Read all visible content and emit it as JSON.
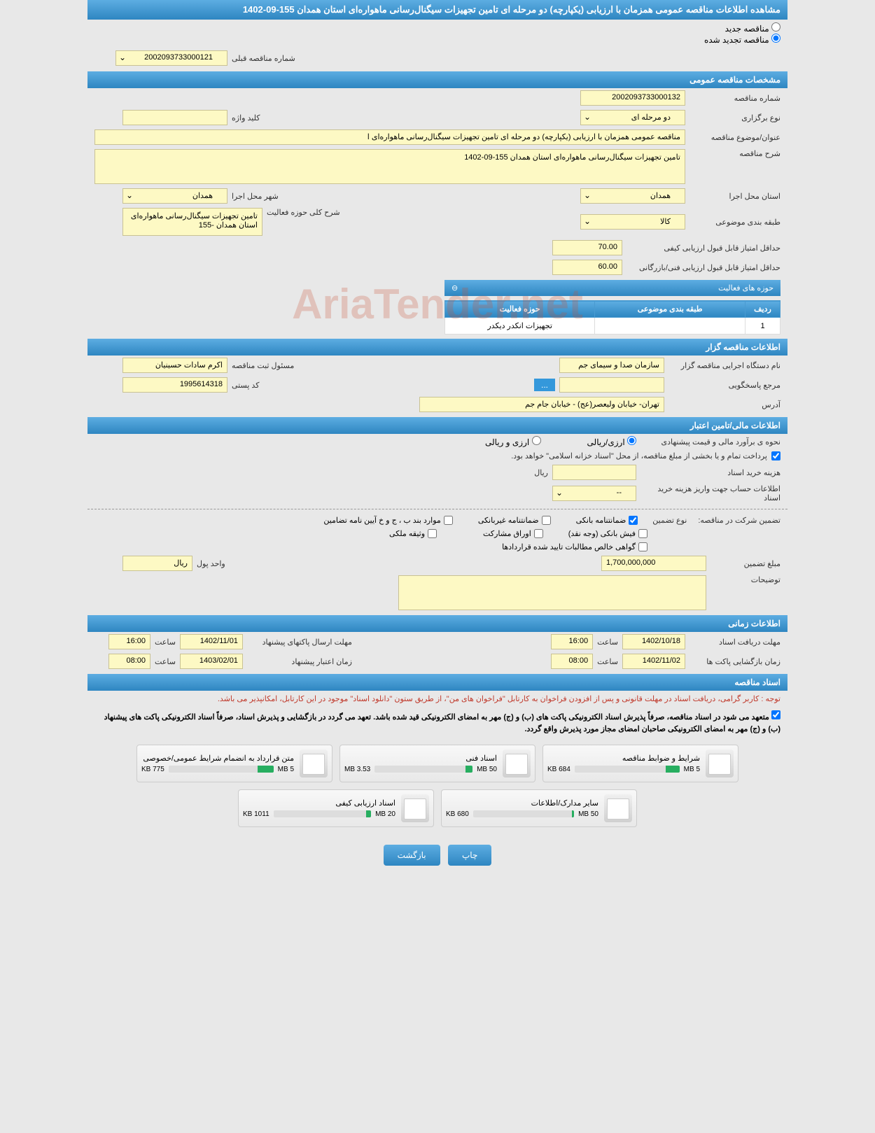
{
  "page_title": "مشاهده اطلاعات مناقصه عمومی همزمان با ارزیابی (یکپارچه) دو مرحله ای تامین تجهیزات سیگنال‌رسانی ماهواره‌ای استان همدان 155-09-1402",
  "radio": {
    "new_tender": "مناقصه جدید",
    "renewed_tender": "مناقصه تجدید شده"
  },
  "prev_number": {
    "label": "شماره مناقصه قبلی",
    "value": "2002093733000121"
  },
  "sections": {
    "general": "مشخصات مناقصه عمومی",
    "holder": "اطلاعات مناقصه گزار",
    "financial": "اطلاعات مالی/تامین اعتبار",
    "time": "اطلاعات زمانی",
    "docs": "اسناد مناقصه"
  },
  "general": {
    "tender_number_label": "شماره مناقصه",
    "tender_number": "2002093733000132",
    "type_label": "نوع برگزاری",
    "type_value": "دو مرحله ای",
    "keyword_label": "کلید واژه",
    "keyword_value": "",
    "title_label": "عنوان/موضوع مناقصه",
    "title_value": "مناقصه عمومی همزمان با ارزیابی (یکپارچه) دو مرحله ای تامین تجهیزات سیگنال‌رسانی ماهواره‌ای ا",
    "description_label": "شرح مناقصه",
    "description_value": "تامین تجهیزات سیگنال‌رسانی ماهواره‌ای استان همدان 155-09-1402",
    "exec_province_label": "استان محل اجرا",
    "exec_province": "همدان",
    "exec_city_label": "شهر محل اجرا",
    "exec_city": "همدان",
    "topic_class_label": "طبقه بندی موضوعی",
    "topic_class": "کالا",
    "activity_desc_label": "شرح کلی حوزه فعالیت",
    "activity_desc": "تامین تجهیزات سیگنال‌رسانی ماهواره‌ای استان همدان -155",
    "min_quality_score_label": "حداقل امتیاز قابل قبول ارزیابی کیفی",
    "min_quality_score": "70.00",
    "min_tech_score_label": "حداقل امتیاز قابل قبول ارزیابی فنی/بازرگانی",
    "min_tech_score": "60.00"
  },
  "activity_table": {
    "header": "حوزه های فعالیت",
    "col_row": "ردیف",
    "col_topic": "طبقه بندی موضوعی",
    "col_activity": "حوزه فعالیت",
    "row1_num": "1",
    "row1_topic": "",
    "row1_activity": "تجهیزات انکدر دیکدر"
  },
  "holder": {
    "exec_org_label": "نام دستگاه اجرایی مناقصه گزار",
    "exec_org": "سازمان صدا و سیمای جم",
    "reg_officer_label": "مسئول ثبت مناقصه",
    "reg_officer": "اکرم سادات حسینیان",
    "responder_label": "مرجع پاسخگویی",
    "responder": "",
    "postal_code_label": "کد پستی",
    "postal_code": "1995614318",
    "address_label": "آدرس",
    "address": "تهران- خیابان ولیعصر(عج) - خیابان جام جم"
  },
  "financial": {
    "estimate_method_label": "نحوه ی برآورد مالی و قیمت پیشنهادی",
    "rial_option": "ارزی/ریالی",
    "currency_option": "ارزی و ریالی",
    "treasury_note": "پرداخت تمام و یا بخشی از مبلغ مناقصه، از محل \"اسناد خزانه اسلامی\" خواهد بود.",
    "doc_cost_label": "هزینه خرید اسناد",
    "doc_cost": "",
    "currency_unit": "ریال",
    "account_info_label": "اطلاعات حساب جهت واریز هزینه خرید اسناد",
    "account_info": "--",
    "guarantee_label": "تضمین شرکت در مناقصه:",
    "guarantee_type_label": "نوع تضمین",
    "bank_guarantee": "ضمانتنامه بانکی",
    "nonbank_guarantee": "ضمانتنامه غیربانکی",
    "regulation_items": "موارد بند ب ، ج و خ آیین نامه تضامین",
    "bank_receipt": "فیش بانکی (وجه نقد)",
    "participation_bonds": "اوراق مشارکت",
    "property_deed": "وثیقه ملکی",
    "net_receivables": "گواهی خالص مطالبات تایید شده قراردادها",
    "guarantee_amount_label": "مبلغ تضمین",
    "guarantee_amount": "1,700,000,000",
    "currency_unit_label": "واحد پول",
    "currency_unit_value": "ریال",
    "notes_label": "توضیحات",
    "notes": ""
  },
  "time": {
    "doc_deadline_label": "مهلت دریافت اسناد",
    "doc_deadline_date": "1402/10/18",
    "doc_deadline_hour_label": "ساعت",
    "doc_deadline_hour": "16:00",
    "envelope_send_label": "مهلت ارسال پاکتهای پیشنهاد",
    "envelope_send_date": "1402/11/01",
    "envelope_send_hour_label": "ساعت",
    "envelope_send_hour": "16:00",
    "envelope_open_label": "زمان بازگشایی پاکت ها",
    "envelope_open_date": "1402/11/02",
    "envelope_open_hour_label": "ساعت",
    "envelope_open_hour": "08:00",
    "validity_label": "زمان اعتبار پیشنهاد",
    "validity_date": "1403/02/01",
    "validity_hour_label": "ساعت",
    "validity_hour": "08:00"
  },
  "docs": {
    "note1": "توجه : کاربر گرامی، دریافت اسناد در مهلت قانونی و پس از افزودن فراخوان به کارتابل \"فراخوان های من\"، از طریق ستون \"دانلود اسناد\" موجود در این کارتابل، امکانپذیر می باشد.",
    "note2": "متعهد می شود در اسناد مناقصه، صرفاً پذیرش اسناد الکترونیکی پاکت های (ب) و (ج) مهر به امضای الکترونیکی قید شده باشد. تعهد می گردد در بازگشایی و پذیرش اسناد، صرفاً اسناد الکترونیکی پاکت های پیشنهاد (ب) و (ج) مهر به امضای الکترونیکی صاحبان امضای مجاز مورد پذیرش واقع گردد.",
    "files": [
      {
        "title": "شرایط و ضوابط مناقصه",
        "used": "684 KB",
        "total": "5 MB",
        "pct": 13
      },
      {
        "title": "اسناد فنی",
        "used": "3.53 MB",
        "total": "50 MB",
        "pct": 7
      },
      {
        "title": "متن قرارداد به انضمام شرایط عمومی/خصوصی",
        "used": "775 KB",
        "total": "5 MB",
        "pct": 15
      },
      {
        "title": "سایر مدارک/اطلاعات",
        "used": "680 KB",
        "total": "50 MB",
        "pct": 2
      },
      {
        "title": "اسناد ارزیابی کیفی",
        "used": "1011 KB",
        "total": "20 MB",
        "pct": 5
      }
    ]
  },
  "buttons": {
    "print": "چاپ",
    "back": "بازگشت"
  },
  "watermark": "AriaTender.net",
  "colors": {
    "header_bg": "#2e86c1",
    "yellow_field": "#fdf9c4",
    "progress_green": "#27ae60",
    "red_text": "#c0392b"
  }
}
